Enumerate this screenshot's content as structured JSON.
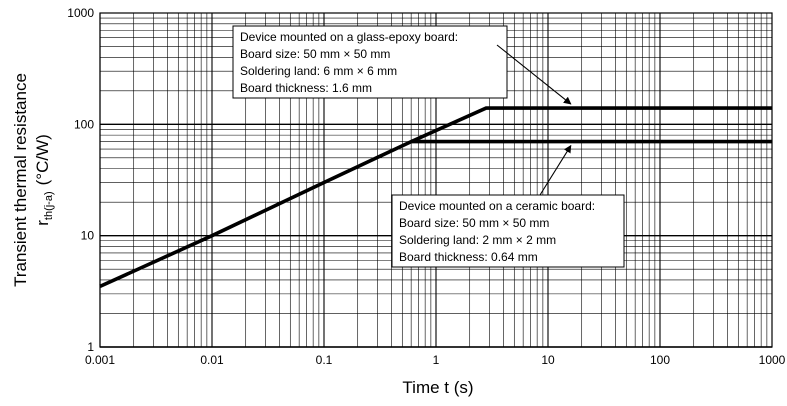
{
  "chart_data": {
    "type": "line",
    "x_scale": "log",
    "y_scale": "log",
    "xlim": [
      0.001,
      1000
    ],
    "ylim": [
      1,
      1000
    ],
    "x_ticks": [
      "0.001",
      "0.01",
      "0.1",
      "1",
      "10",
      "100",
      "1000"
    ],
    "y_ticks": [
      "1",
      "10",
      "100",
      "1000"
    ],
    "grid": true,
    "xlabel": "Time  t  (s)",
    "ylabel_main": "Transient thermal resistance",
    "ylabel_symbol": "r",
    "ylabel_subscript": "th(j-a)",
    "ylabel_unit": "(°C/W)",
    "series": [
      {
        "points": [
          [
            0.001,
            3.5
          ],
          [
            0.01,
            10
          ],
          [
            0.1,
            30
          ],
          [
            0.6,
            70
          ],
          [
            2.8,
            140
          ],
          [
            1000,
            140
          ]
        ]
      },
      {
        "points": [
          [
            0.6,
            70
          ],
          [
            1000,
            70
          ]
        ]
      }
    ],
    "annotations": [
      {
        "lines": [
          "Device mounted on a glass-epoxy board:",
          "Board size: 50 mm  ×  50 mm",
          "Soldering land: 6 mm  ×  6 mm",
          "Board thickness: 1.6 mm"
        ],
        "target": [
          16,
          140
        ]
      },
      {
        "lines": [
          "Device mounted on a ceramic board:",
          "Board size: 50 mm  ×  50 mm",
          "Soldering land: 2 mm  ×  2 mm",
          "Board thickness: 0.64 mm"
        ],
        "target": [
          16,
          70
        ]
      }
    ]
  }
}
